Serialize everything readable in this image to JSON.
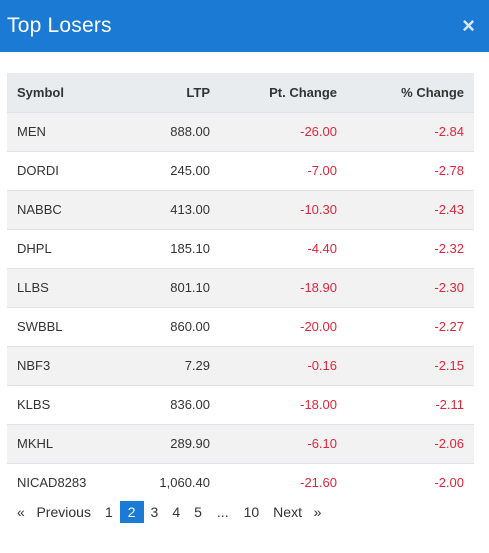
{
  "header": {
    "title": "Top Losers",
    "close_label": "×"
  },
  "table": {
    "columns": {
      "symbol": "Symbol",
      "ltp": "LTP",
      "pt_change": "Pt. Change",
      "pct_change": "% Change"
    },
    "rows": [
      {
        "symbol": "MEN",
        "ltp": "888.00",
        "pt_change": "-26.00",
        "pct_change": "-2.84"
      },
      {
        "symbol": "DORDI",
        "ltp": "245.00",
        "pt_change": "-7.00",
        "pct_change": "-2.78"
      },
      {
        "symbol": "NABBC",
        "ltp": "413.00",
        "pt_change": "-10.30",
        "pct_change": "-2.43"
      },
      {
        "symbol": "DHPL",
        "ltp": "185.10",
        "pt_change": "-4.40",
        "pct_change": "-2.32"
      },
      {
        "symbol": "LLBS",
        "ltp": "801.10",
        "pt_change": "-18.90",
        "pct_change": "-2.30"
      },
      {
        "symbol": "SWBBL",
        "ltp": "860.00",
        "pt_change": "-20.00",
        "pct_change": "-2.27"
      },
      {
        "symbol": "NBF3",
        "ltp": "7.29",
        "pt_change": "-0.16",
        "pct_change": "-2.15"
      },
      {
        "symbol": "KLBS",
        "ltp": "836.00",
        "pt_change": "-18.00",
        "pct_change": "-2.11"
      },
      {
        "symbol": "MKHL",
        "ltp": "289.90",
        "pt_change": "-6.10",
        "pct_change": "-2.06"
      },
      {
        "symbol": "NICAD8283",
        "ltp": "1,060.40",
        "pt_change": "-21.60",
        "pct_change": "-2.00"
      }
    ]
  },
  "pagination": {
    "prev_arrow": "«",
    "prev_label": "Previous",
    "pages": [
      "1",
      "2",
      "3",
      "4",
      "5",
      "...",
      "10"
    ],
    "active_page": "2",
    "next_label": "Next",
    "next_arrow": "»"
  },
  "colors": {
    "header_bg": "#1a7ad4",
    "negative": "#e0263b",
    "active_page_bg": "#1a7ad4"
  }
}
